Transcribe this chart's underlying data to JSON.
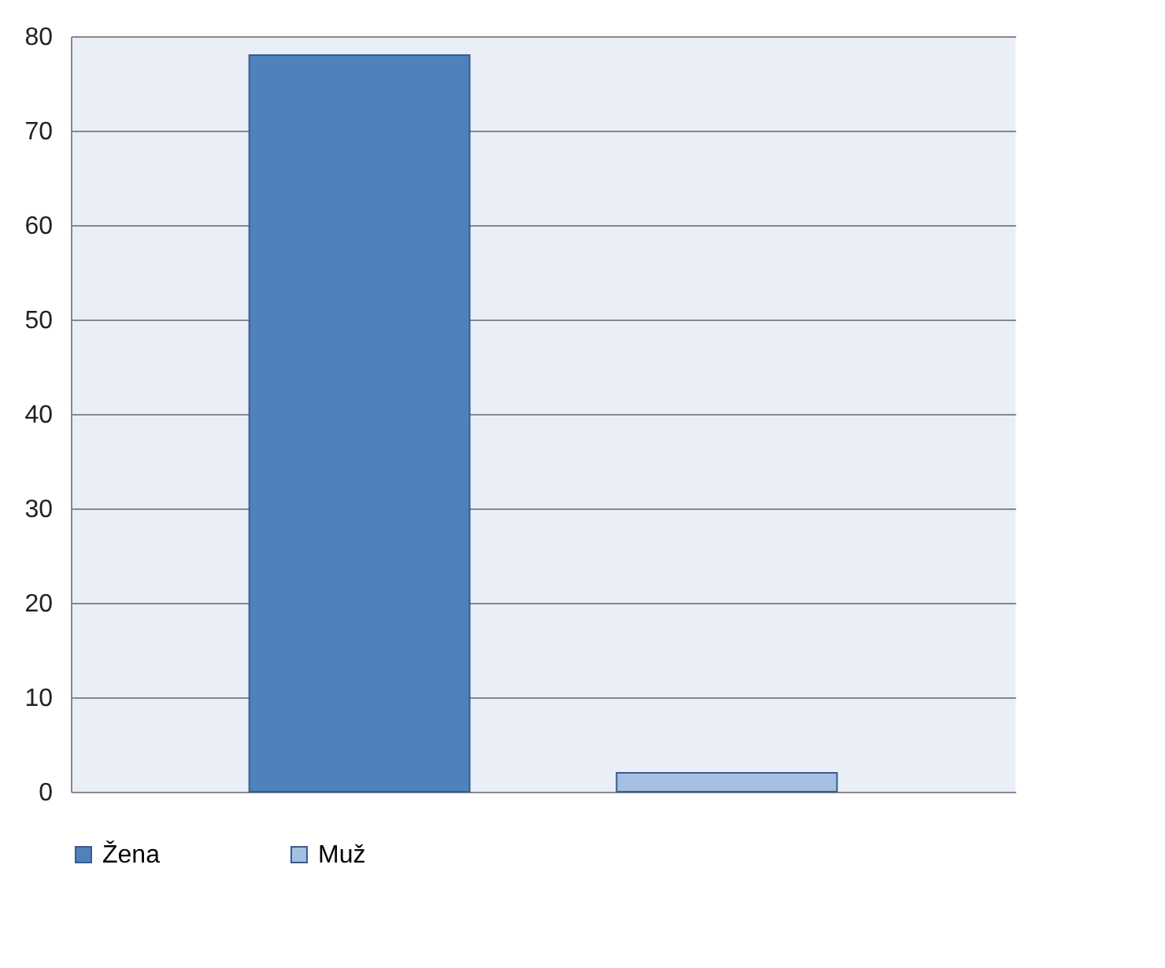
{
  "chart_data": {
    "type": "bar",
    "categories": [
      null
    ],
    "series": [
      {
        "name": "Žena",
        "color": "#4f81bd",
        "values": [
          78
        ]
      },
      {
        "name": "Muž",
        "color": "#a5bfe2",
        "values": [
          2
        ]
      }
    ],
    "ylim": [
      0,
      80
    ],
    "yticks": [
      0,
      10,
      20,
      30,
      40,
      50,
      60,
      70,
      80
    ],
    "grid": "y",
    "legend": "bottom"
  }
}
